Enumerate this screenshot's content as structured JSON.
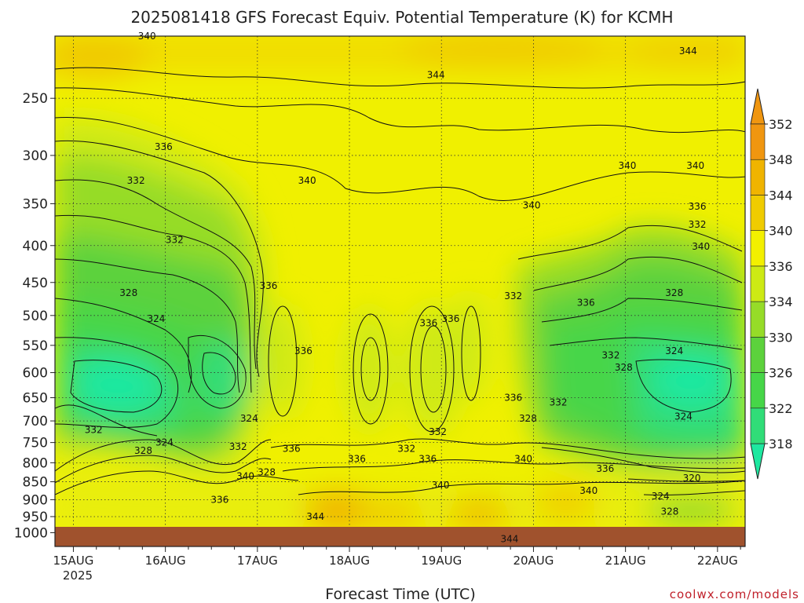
{
  "chart_data": {
    "type": "heatmap",
    "title": "2025081418 GFS Forecast Equiv. Potential Temperature (K) for KCMH",
    "xlabel": "Forecast Time (UTC)",
    "ylabel": "",
    "watermark": "coolwx.com/models",
    "y_scale": "pressure (hPa), inverted log",
    "y_ticks": [
      250,
      300,
      350,
      400,
      450,
      500,
      550,
      600,
      650,
      700,
      750,
      800,
      850,
      900,
      950,
      1000
    ],
    "x_ticks": [
      "15AUG",
      "16AUG",
      "17AUG",
      "18AUG",
      "19AUG",
      "20AUG",
      "21AUG",
      "22AUG"
    ],
    "x_year_label": "2025",
    "grid": true,
    "colorbar": {
      "position": "right",
      "levels": [
        318,
        322,
        326,
        330,
        334,
        336,
        340,
        344,
        348,
        352
      ],
      "colors": [
        "#1ee8a0",
        "#30dd78",
        "#46d648",
        "#5cd23c",
        "#96dc28",
        "#cdea14",
        "#f3f000",
        "#f0cc00",
        "#f0b400",
        "#f09610"
      ]
    },
    "contour_labels": [
      {
        "value": "340",
        "day": 15.8,
        "p": 205
      },
      {
        "value": "344",
        "day": 18.94,
        "p": 232
      },
      {
        "value": "344",
        "day": 21.68,
        "p": 215
      },
      {
        "value": "336",
        "day": 15.98,
        "p": 292
      },
      {
        "value": "332",
        "day": 15.68,
        "p": 325
      },
      {
        "value": "340",
        "day": 17.54,
        "p": 325
      },
      {
        "value": "340",
        "day": 21.02,
        "p": 310
      },
      {
        "value": "340",
        "day": 21.76,
        "p": 310
      },
      {
        "value": "340",
        "day": 19.98,
        "p": 352
      },
      {
        "value": "336",
        "day": 21.78,
        "p": 353
      },
      {
        "value": "332",
        "day": 21.78,
        "p": 374
      },
      {
        "value": "332",
        "day": 16.1,
        "p": 393
      },
      {
        "value": "340",
        "day": 21.82,
        "p": 401
      },
      {
        "value": "336",
        "day": 17.12,
        "p": 455
      },
      {
        "value": "328",
        "day": 15.6,
        "p": 465
      },
      {
        "value": "332",
        "day": 19.78,
        "p": 470
      },
      {
        "value": "336",
        "day": 20.57,
        "p": 480
      },
      {
        "value": "328",
        "day": 21.53,
        "p": 465
      },
      {
        "value": "324",
        "day": 15.9,
        "p": 505
      },
      {
        "value": "336",
        "day": 18.86,
        "p": 512
      },
      {
        "value": "336",
        "day": 19.1,
        "p": 505
      },
      {
        "value": "336",
        "day": 17.5,
        "p": 560
      },
      {
        "value": "332",
        "day": 20.84,
        "p": 568
      },
      {
        "value": "324",
        "day": 21.53,
        "p": 560
      },
      {
        "value": "328",
        "day": 20.98,
        "p": 590
      },
      {
        "value": "336",
        "day": 19.78,
        "p": 650
      },
      {
        "value": "332",
        "day": 20.27,
        "p": 660
      },
      {
        "value": "328",
        "day": 19.94,
        "p": 695
      },
      {
        "value": "324",
        "day": 16.91,
        "p": 695
      },
      {
        "value": "324",
        "day": 21.63,
        "p": 690
      },
      {
        "value": "332",
        "day": 15.22,
        "p": 720
      },
      {
        "value": "324",
        "day": 15.99,
        "p": 750
      },
      {
        "value": "328",
        "day": 15.76,
        "p": 770
      },
      {
        "value": "332",
        "day": 16.79,
        "p": 760
      },
      {
        "value": "332",
        "day": 18.96,
        "p": 725
      },
      {
        "value": "336",
        "day": 17.37,
        "p": 765
      },
      {
        "value": "332",
        "day": 18.62,
        "p": 765
      },
      {
        "value": "336",
        "day": 18.08,
        "p": 790
      },
      {
        "value": "336",
        "day": 18.85,
        "p": 790
      },
      {
        "value": "340",
        "day": 19.89,
        "p": 790
      },
      {
        "value": "336",
        "day": 20.78,
        "p": 815
      },
      {
        "value": "340",
        "day": 16.87,
        "p": 835
      },
      {
        "value": "328",
        "day": 17.1,
        "p": 825
      },
      {
        "value": "320",
        "day": 21.72,
        "p": 840
      },
      {
        "value": "340",
        "day": 18.99,
        "p": 860
      },
      {
        "value": "340",
        "day": 20.6,
        "p": 875
      },
      {
        "value": "336",
        "day": 16.59,
        "p": 900
      },
      {
        "value": "324",
        "day": 21.38,
        "p": 890
      },
      {
        "value": "328",
        "day": 21.48,
        "p": 935
      },
      {
        "value": "344",
        "day": 17.63,
        "p": 950
      },
      {
        "value": "344",
        "day": 19.74,
        "p": 1020
      }
    ]
  }
}
